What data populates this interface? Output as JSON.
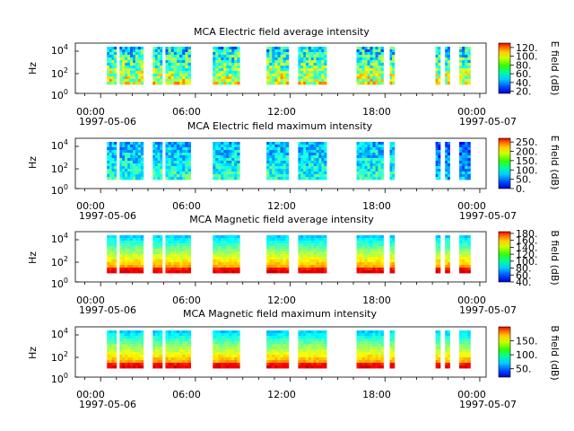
{
  "chart_data": [
    {
      "type": "heatmap",
      "title": "MCA  Electric field average intensity",
      "ylabel": "Hz",
      "ylim": [
        1,
        30000
      ],
      "yscale": "log",
      "y_ticks": [
        {
          "value": 1,
          "base": "10",
          "exp": "0"
        },
        {
          "value": 100,
          "base": "10",
          "exp": "2"
        },
        {
          "value": 10000,
          "base": "10",
          "exp": "4"
        }
      ],
      "x_ticks": [
        "00:00",
        "06:00",
        "12:00",
        "18:00",
        "00:00"
      ],
      "x_dates": [
        "1997-05-06",
        "1997-05-07"
      ],
      "colorbar": {
        "label": "E field (dB)",
        "range": [
          15,
          130
        ],
        "ticks": [
          20,
          40,
          60,
          80,
          100,
          120
        ],
        "tick_labels": [
          "20.",
          "40.",
          "60.",
          "80.",
          "100.",
          "120."
        ]
      },
      "data_windows_utc_hours": [
        [
          0.4,
          1.0
        ],
        [
          1.2,
          2.7
        ],
        [
          3.3,
          3.9
        ],
        [
          4.1,
          5.7
        ],
        [
          7.1,
          8.8
        ],
        [
          10.5,
          11.9
        ],
        [
          12.5,
          14.3
        ],
        [
          16.2,
          17.9
        ],
        [
          18.3,
          18.6
        ],
        [
          21.2,
          21.5
        ],
        [
          21.8,
          22.1
        ],
        [
          22.7,
          23.4
        ]
      ]
    },
    {
      "type": "heatmap",
      "title": "MCA  Electric field maximum intensity",
      "ylabel": "Hz",
      "ylim": [
        1,
        30000
      ],
      "yscale": "log",
      "y_ticks": [
        {
          "value": 1,
          "base": "10",
          "exp": "0"
        },
        {
          "value": 100,
          "base": "10",
          "exp": "2"
        },
        {
          "value": 10000,
          "base": "10",
          "exp": "4"
        }
      ],
      "x_ticks": [
        "00:00",
        "06:00",
        "12:00",
        "18:00",
        "00:00"
      ],
      "x_dates": [
        "1997-05-06",
        "1997-05-07"
      ],
      "colorbar": {
        "label": "E field (dB)",
        "range": [
          0,
          270
        ],
        "ticks": [
          0,
          50,
          100,
          150,
          200,
          250
        ],
        "tick_labels": [
          "0.",
          "50.",
          "100.",
          "150.",
          "200.",
          "250."
        ]
      },
      "data_windows_utc_hours": [
        [
          0.4,
          1.0
        ],
        [
          1.2,
          2.7
        ],
        [
          3.3,
          3.9
        ],
        [
          4.1,
          5.7
        ],
        [
          7.1,
          8.8
        ],
        [
          10.5,
          11.9
        ],
        [
          12.5,
          14.3
        ],
        [
          16.2,
          17.9
        ],
        [
          18.3,
          18.6
        ],
        [
          21.2,
          21.5
        ],
        [
          21.8,
          22.1
        ],
        [
          22.7,
          23.4
        ]
      ]
    },
    {
      "type": "heatmap",
      "title": "MCA  Magnetic field average intensity",
      "ylabel": "Hz",
      "ylim": [
        1,
        30000
      ],
      "yscale": "log",
      "y_ticks": [
        {
          "value": 1,
          "base": "10",
          "exp": "0"
        },
        {
          "value": 100,
          "base": "10",
          "exp": "2"
        },
        {
          "value": 10000,
          "base": "10",
          "exp": "4"
        }
      ],
      "x_ticks": [
        "00:00",
        "06:00",
        "12:00",
        "18:00",
        "00:00"
      ],
      "x_dates": [
        "1997-05-06",
        "1997-05-07"
      ],
      "colorbar": {
        "label": "B field (dB)",
        "range": [
          40,
          185
        ],
        "ticks": [
          40,
          60,
          80,
          100,
          120,
          140,
          160,
          180
        ],
        "tick_labels": [
          "40.",
          "60.",
          "80.",
          "100.",
          "120.",
          "140.",
          "160.",
          "180."
        ]
      },
      "data_windows_utc_hours": [
        [
          0.4,
          1.0
        ],
        [
          1.2,
          2.7
        ],
        [
          3.3,
          3.9
        ],
        [
          4.1,
          5.7
        ],
        [
          7.1,
          8.8
        ],
        [
          10.5,
          11.9
        ],
        [
          12.5,
          14.3
        ],
        [
          16.2,
          17.9
        ],
        [
          18.3,
          18.6
        ],
        [
          21.2,
          21.5
        ],
        [
          21.8,
          22.1
        ],
        [
          22.7,
          23.4
        ]
      ]
    },
    {
      "type": "heatmap",
      "title": "MCA  Magnetic field maximum intensity",
      "ylabel": "Hz",
      "ylim": [
        1,
        30000
      ],
      "yscale": "log",
      "y_ticks": [
        {
          "value": 1,
          "base": "10",
          "exp": "0"
        },
        {
          "value": 100,
          "base": "10",
          "exp": "2"
        },
        {
          "value": 10000,
          "base": "10",
          "exp": "4"
        }
      ],
      "x_ticks": [
        "00:00",
        "06:00",
        "12:00",
        "18:00",
        "00:00"
      ],
      "x_dates": [
        "1997-05-06",
        "1997-05-07"
      ],
      "colorbar": {
        "label": "B field (dB)",
        "range": [
          20,
          200
        ],
        "ticks": [
          50,
          100,
          150
        ],
        "tick_labels": [
          "50.",
          "100.",
          "150."
        ]
      },
      "data_windows_utc_hours": [
        [
          0.4,
          1.0
        ],
        [
          1.2,
          2.7
        ],
        [
          3.3,
          3.9
        ],
        [
          4.1,
          5.7
        ],
        [
          7.1,
          8.8
        ],
        [
          10.5,
          11.9
        ],
        [
          12.5,
          14.3
        ],
        [
          16.2,
          17.9
        ],
        [
          18.3,
          18.6
        ],
        [
          21.2,
          21.5
        ],
        [
          21.8,
          22.1
        ],
        [
          22.7,
          23.4
        ]
      ]
    }
  ]
}
